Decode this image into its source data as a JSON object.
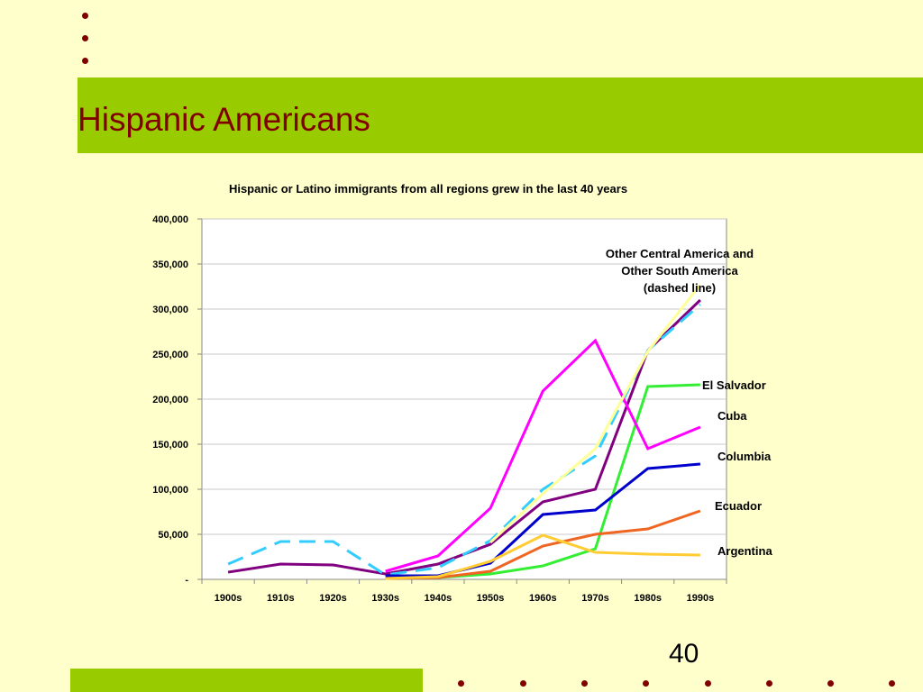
{
  "slide": {
    "title": "Hispanic Americans",
    "page_number": "40",
    "colors": {
      "background": "#ffffcc",
      "band": "#99cc00",
      "title_text": "#800000",
      "bullet": "#800000"
    }
  },
  "chart_data": {
    "type": "line",
    "title": "Hispanic or Latino immigrants from all regions grew in the last 40 years",
    "xlabel": "",
    "ylabel": "",
    "categories": [
      "1900s",
      "1910s",
      "1920s",
      "1930s",
      "1940s",
      "1950s",
      "1960s",
      "1970s",
      "1980s",
      "1990s"
    ],
    "ylim": [
      0,
      400000
    ],
    "y_ticks": [
      0,
      50000,
      100000,
      150000,
      200000,
      250000,
      300000,
      350000,
      400000
    ],
    "y_tick_labels": [
      "-",
      "50,000",
      "100,000",
      "150,000",
      "200,000",
      "250,000",
      "300,000",
      "350,000",
      "400,000"
    ],
    "grid": true,
    "series": [
      {
        "name": "Other South America",
        "color": "#800080",
        "dashed": false,
        "values": [
          8000,
          17000,
          16000,
          6000,
          17000,
          39000,
          86000,
          100000,
          254000,
          310000
        ]
      },
      {
        "name": "Other Central America",
        "color": "#33ccff",
        "dashed": true,
        "values": [
          17000,
          42000,
          42000,
          5000,
          13000,
          43000,
          100000,
          137000,
          254000,
          305000
        ]
      },
      {
        "name": "El Salvador",
        "color": "#33ee33",
        "dashed": false,
        "values": [
          null,
          null,
          null,
          null,
          2000,
          6000,
          15000,
          34000,
          214000,
          216000
        ]
      },
      {
        "name": "Cuba",
        "color": "#ff00ff",
        "dashed": false,
        "values": [
          null,
          null,
          null,
          9000,
          26000,
          79000,
          209000,
          265000,
          145000,
          169000
        ]
      },
      {
        "name": "Columbia",
        "color": "#0000cc",
        "dashed": false,
        "values": [
          null,
          null,
          null,
          4000,
          4000,
          18000,
          72000,
          77000,
          123000,
          128000
        ]
      },
      {
        "name": "Ecuador",
        "color": "#ee6622",
        "dashed": false,
        "values": [
          null,
          null,
          null,
          1000,
          2000,
          9000,
          37000,
          50000,
          56000,
          76000
        ]
      },
      {
        "name": "Argentina",
        "color": "#ffcc33",
        "dashed": false,
        "values": [
          null,
          null,
          null,
          1000,
          3000,
          20000,
          49000,
          30000,
          28000,
          27000
        ]
      },
      {
        "name": "",
        "color": "#ffff99",
        "dashed": false,
        "values": [
          null,
          null,
          null,
          null,
          null,
          41000,
          95000,
          145000,
          253000,
          327000
        ]
      }
    ],
    "annotations": [
      {
        "text": "Other Central America and\nOther South America\n(dashed line)"
      },
      {
        "text": "El Salvador"
      },
      {
        "text": "Cuba"
      },
      {
        "text": "Columbia"
      },
      {
        "text": "Ecuador"
      },
      {
        "text": "Argentina"
      }
    ]
  }
}
